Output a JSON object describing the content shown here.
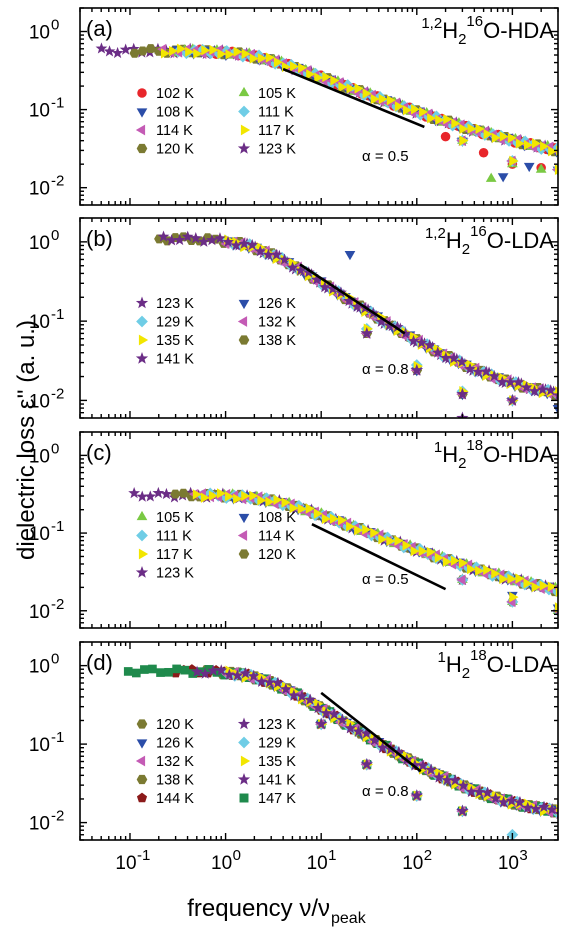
{
  "figure": {
    "ylabel": "dielectric loss ε'' (a. u.)",
    "xlabel_main": "frequency ν/ν",
    "xlabel_sub": "peak",
    "x_tick_labels": [
      {
        "base": "10",
        "exp": "-1"
      },
      {
        "base": "10",
        "exp": "0"
      },
      {
        "base": "10",
        "exp": "1"
      },
      {
        "base": "10",
        "exp": "2"
      },
      {
        "base": "10",
        "exp": "3"
      }
    ],
    "y_tick_labels": [
      {
        "base": "10",
        "exp": "0"
      },
      {
        "base": "10",
        "exp": "-1"
      },
      {
        "base": "10",
        "exp": "-2"
      }
    ]
  },
  "legend_styles": {
    "102 K": {
      "marker": "circle",
      "color": "#e8262b"
    },
    "105 K": {
      "marker": "triangle-up",
      "color": "#7ac943"
    },
    "108 K": {
      "marker": "triangle-down",
      "color": "#2b4da8"
    },
    "111 K": {
      "marker": "diamond",
      "color": "#6fcde6"
    },
    "114 K": {
      "marker": "triangle-left",
      "color": "#c45bb5"
    },
    "117 K": {
      "marker": "triangle-right",
      "color": "#f2e600"
    },
    "120 K": {
      "marker": "hexagon",
      "color": "#7b7a32"
    },
    "123 K": {
      "marker": "star",
      "color": "#6b2d86"
    },
    "126 K": {
      "marker": "triangle-down",
      "color": "#2b4da8"
    },
    "129 K": {
      "marker": "diamond",
      "color": "#6fcde6"
    },
    "132 K": {
      "marker": "triangle-left",
      "color": "#c45bb5"
    },
    "135 K": {
      "marker": "triangle-right",
      "color": "#f2e600"
    },
    "138 K": {
      "marker": "hexagon",
      "color": "#7b7a32"
    },
    "141 K": {
      "marker": "star",
      "color": "#6b2d86"
    },
    "144 K": {
      "marker": "pentagon",
      "color": "#8b1a1a"
    },
    "147 K": {
      "marker": "square",
      "color": "#1f8a4c"
    }
  },
  "chart_data": [
    {
      "type": "scatter",
      "panel_label": "(a)",
      "title": {
        "sup1": "1,2",
        "H": "H",
        "sub": "2",
        "sup2": "16",
        "rest": "O-HDA"
      },
      "xscale": "log",
      "yscale": "log",
      "xlim": [
        0.03,
        3000
      ],
      "ylim": [
        0.006,
        2
      ],
      "annotation": "α = 0.5",
      "slope_line": {
        "x": [
          4,
          120
        ],
        "y": [
          0.33,
          0.06
        ]
      },
      "curve": {
        "plateau": 0.55,
        "knee": 2.0,
        "slope": 0.5,
        "floor": 0.016
      },
      "legend_layout": "two-column, lower-left",
      "legend": [
        [
          "102 K",
          "105 K"
        ],
        [
          "108 K",
          "111 K"
        ],
        [
          "114 K",
          "117 K"
        ],
        [
          "120 K",
          "123 K"
        ]
      ],
      "series": [
        {
          "name": "102 K",
          "x": [
            0.5,
            1,
            2,
            5,
            10,
            20,
            50,
            100,
            200,
            500,
            1000,
            2000
          ],
          "y": [
            0.55,
            0.55,
            0.5,
            0.33,
            0.23,
            0.16,
            0.1,
            0.07,
            0.045,
            0.028,
            0.02,
            0.018
          ]
        },
        {
          "name": "105 K",
          "x": [
            0.3,
            1,
            3,
            10,
            30,
            100,
            300,
            600,
            1000,
            2000
          ],
          "y": [
            0.55,
            0.55,
            0.42,
            0.23,
            0.13,
            0.075,
            0.04,
            0.013,
            0.02,
            0.017
          ]
        },
        {
          "name": "108 K",
          "x": [
            0.3,
            1,
            3,
            10,
            30,
            100,
            300,
            800,
            1500,
            3000
          ],
          "y": [
            0.55,
            0.55,
            0.42,
            0.23,
            0.13,
            0.075,
            0.04,
            0.014,
            0.019,
            0.017
          ]
        },
        {
          "name": "111 K",
          "x": [
            0.3,
            1,
            3,
            10,
            30,
            100,
            300,
            1000,
            3000
          ],
          "y": [
            0.55,
            0.55,
            0.42,
            0.23,
            0.14,
            0.08,
            0.04,
            0.022,
            0.017
          ]
        },
        {
          "name": "114 K",
          "x": [
            0.2,
            1,
            3,
            10,
            30,
            100,
            300,
            1000,
            3000
          ],
          "y": [
            0.55,
            0.55,
            0.42,
            0.23,
            0.13,
            0.075,
            0.04,
            0.022,
            0.017
          ]
        },
        {
          "name": "117 K",
          "x": [
            0.2,
            1,
            3,
            10,
            30,
            100,
            300,
            1000,
            3000
          ],
          "y": [
            0.55,
            0.55,
            0.42,
            0.23,
            0.13,
            0.075,
            0.04,
            0.022,
            0.017
          ]
        },
        {
          "name": "120 K",
          "x": [
            0.1,
            0.2,
            0.5,
            1,
            3,
            10,
            30,
            100,
            300,
            1000
          ],
          "y": [
            0.5,
            0.55,
            0.55,
            0.55,
            0.42,
            0.23,
            0.13,
            0.075,
            0.04,
            0.022
          ]
        },
        {
          "name": "123 K",
          "x": [
            0.05,
            0.1,
            0.2,
            0.5,
            1,
            3,
            10,
            30,
            100,
            300
          ],
          "y": [
            0.45,
            0.5,
            0.55,
            0.55,
            0.55,
            0.42,
            0.23,
            0.13,
            0.075,
            0.04
          ]
        }
      ]
    },
    {
      "type": "scatter",
      "panel_label": "(b)",
      "title": {
        "sup1": "1,2",
        "H": "H",
        "sub": "2",
        "sup2": "16",
        "rest": "O-LDA"
      },
      "xscale": "log",
      "yscale": "log",
      "xlim": [
        0.03,
        3000
      ],
      "ylim": [
        0.006,
        2
      ],
      "annotation": "α = 0.8",
      "slope_line": {
        "x": [
          6,
          75
        ],
        "y": [
          0.52,
          0.07
        ]
      },
      "curve": {
        "plateau": 1.1,
        "knee": 2.0,
        "slope": 0.8,
        "floor": 0.009
      },
      "legend_layout": "two-column, lower-left",
      "legend": [
        [
          "123 K",
          "126 K"
        ],
        [
          "129 K",
          "132 K"
        ],
        [
          "135 K",
          "138 K"
        ],
        [
          "141 K",
          ""
        ]
      ],
      "series": [
        {
          "name": "123 K",
          "x": [
            1,
            3,
            10,
            30,
            100,
            300,
            1000
          ],
          "y": [
            1.1,
            0.75,
            0.24,
            0.07,
            0.024,
            0.006,
            0.01
          ]
        },
        {
          "name": "126 K",
          "x": [
            1,
            3,
            10,
            20,
            100,
            300,
            1000,
            3000
          ],
          "y": [
            1.1,
            0.75,
            0.24,
            0.7,
            0.024,
            0.012,
            0.01,
            0.008
          ]
        },
        {
          "name": "129 K",
          "x": [
            1,
            3,
            10,
            30,
            100,
            300,
            1000,
            3000
          ],
          "y": [
            1.1,
            0.75,
            0.24,
            0.08,
            0.028,
            0.013,
            0.01,
            0.009
          ]
        },
        {
          "name": "132 K",
          "x": [
            1,
            3,
            10,
            30,
            100,
            300,
            1000,
            3000
          ],
          "y": [
            1.1,
            0.75,
            0.24,
            0.07,
            0.024,
            0.012,
            0.01,
            0.009
          ]
        },
        {
          "name": "135 K",
          "x": [
            1,
            3,
            10,
            30,
            100,
            300,
            1000,
            3000
          ],
          "y": [
            1.1,
            0.75,
            0.24,
            0.08,
            0.027,
            0.013,
            0.01,
            0.009
          ]
        },
        {
          "name": "138 K",
          "x": [
            0.2,
            0.5,
            1,
            3,
            10,
            30,
            100,
            300,
            1000
          ],
          "y": [
            1.1,
            1.1,
            1.1,
            0.75,
            0.24,
            0.07,
            0.024,
            0.012,
            0.01
          ]
        },
        {
          "name": "141 K",
          "x": [
            0.2,
            0.5,
            1,
            3,
            10,
            30,
            100,
            300,
            1000
          ],
          "y": [
            1.6,
            1.1,
            1.1,
            0.75,
            0.24,
            0.07,
            0.024,
            0.012,
            0.01
          ]
        }
      ]
    },
    {
      "type": "scatter",
      "panel_label": "(c)",
      "title": {
        "sup1": "1",
        "H": "H",
        "sub": "2",
        "sup2": "18",
        "rest": "O-HDA"
      },
      "xscale": "log",
      "yscale": "log",
      "xlim": [
        0.03,
        3000
      ],
      "ylim": [
        0.006,
        2
      ],
      "annotation": "α = 0.5",
      "slope_line": {
        "x": [
          8,
          200
        ],
        "y": [
          0.13,
          0.019
        ]
      },
      "curve": {
        "plateau": 0.3,
        "knee": 3.0,
        "slope": 0.5,
        "floor": 0.009
      },
      "legend_layout": "two-column, lower-left",
      "legend": [
        [
          "105 K",
          "108 K"
        ],
        [
          "111 K",
          "114 K"
        ],
        [
          "117 K",
          "120 K"
        ],
        [
          "123 K",
          ""
        ]
      ],
      "series": [
        {
          "name": "105 K",
          "x": [
            1,
            3,
            10,
            30,
            100,
            300,
            1000,
            3000
          ],
          "y": [
            0.3,
            0.27,
            0.15,
            0.08,
            0.045,
            0.025,
            0.013,
            0.01
          ]
        },
        {
          "name": "108 K",
          "x": [
            1,
            3,
            10,
            30,
            100,
            300,
            1000,
            3000
          ],
          "y": [
            0.3,
            0.3,
            0.2,
            0.11,
            0.06,
            0.03,
            0.016,
            0.011
          ]
        },
        {
          "name": "111 K",
          "x": [
            0.5,
            1,
            3,
            10,
            30,
            100,
            300,
            1000,
            3000
          ],
          "y": [
            0.3,
            0.3,
            0.27,
            0.15,
            0.08,
            0.045,
            0.025,
            0.013,
            0.01
          ]
        },
        {
          "name": "114 K",
          "x": [
            0.5,
            1,
            3,
            10,
            30,
            100,
            300,
            1000,
            3000
          ],
          "y": [
            0.3,
            0.3,
            0.27,
            0.15,
            0.08,
            0.045,
            0.025,
            0.013,
            0.01
          ]
        },
        {
          "name": "117 K",
          "x": [
            0.5,
            1,
            3,
            10,
            30,
            100,
            300,
            1000,
            3000
          ],
          "y": [
            0.3,
            0.3,
            0.28,
            0.17,
            0.09,
            0.05,
            0.028,
            0.015,
            0.011
          ]
        },
        {
          "name": "120 K",
          "x": [
            0.3,
            0.5,
            1,
            3,
            10,
            30,
            100,
            300,
            1000
          ],
          "y": [
            0.3,
            0.3,
            0.3,
            0.27,
            0.15,
            0.08,
            0.045,
            0.025,
            0.013
          ]
        },
        {
          "name": "123 K",
          "x": [
            0.1,
            0.2,
            0.5,
            1,
            3,
            10,
            30,
            100,
            300
          ],
          "y": [
            0.28,
            0.29,
            0.3,
            0.3,
            0.27,
            0.15,
            0.08,
            0.045,
            0.025
          ]
        }
      ]
    },
    {
      "type": "scatter",
      "panel_label": "(d)",
      "title": {
        "sup1": "1",
        "H": "H",
        "sub": "2",
        "sup2": "18",
        "rest": "O-LDA"
      },
      "xscale": "log",
      "yscale": "log",
      "xlim": [
        0.03,
        3000
      ],
      "ylim": [
        0.006,
        2
      ],
      "annotation": "α = 0.8",
      "slope_line": {
        "x": [
          10,
          110
        ],
        "y": [
          0.45,
          0.045
        ]
      },
      "curve": {
        "plateau": 0.85,
        "knee": 2.5,
        "slope": 0.8,
        "floor": 0.011
      },
      "legend_layout": "two-column, lower-left",
      "legend": [
        [
          "120 K",
          "123 K"
        ],
        [
          "126 K",
          "129 K"
        ],
        [
          "132 K",
          "135 K"
        ],
        [
          "138 K",
          "141 K"
        ],
        [
          "144 K",
          "147 K"
        ]
      ],
      "series": [
        {
          "name": "120 K",
          "x": [
            1,
            3,
            10,
            30,
            100,
            300,
            1000
          ],
          "y": [
            0.85,
            0.6,
            0.18,
            0.055,
            0.022,
            0.014,
            0.012
          ]
        },
        {
          "name": "123 K",
          "x": [
            1,
            3,
            10,
            30,
            100,
            300,
            1000
          ],
          "y": [
            0.85,
            0.6,
            0.18,
            0.055,
            0.022,
            0.014,
            0.012
          ]
        },
        {
          "name": "126 K",
          "x": [
            1,
            3,
            10,
            30,
            100,
            300,
            1000
          ],
          "y": [
            0.85,
            0.6,
            0.18,
            0.055,
            0.022,
            0.014,
            0.012
          ]
        },
        {
          "name": "129 K",
          "x": [
            1,
            3,
            10,
            30,
            100,
            300,
            1000,
            3000
          ],
          "y": [
            0.85,
            0.6,
            0.18,
            0.055,
            0.022,
            0.014,
            0.007,
            0.01
          ]
        },
        {
          "name": "132 K",
          "x": [
            1,
            3,
            10,
            30,
            100,
            300,
            1000
          ],
          "y": [
            0.85,
            0.6,
            0.18,
            0.055,
            0.022,
            0.014,
            0.012
          ]
        },
        {
          "name": "135 K",
          "x": [
            1,
            3,
            10,
            30,
            100,
            300,
            1000
          ],
          "y": [
            0.85,
            0.6,
            0.18,
            0.055,
            0.022,
            0.014,
            0.012
          ]
        },
        {
          "name": "138 K",
          "x": [
            0.5,
            1,
            3,
            10,
            30,
            100,
            300,
            1000,
            2000
          ],
          "y": [
            0.85,
            0.85,
            0.6,
            0.18,
            0.055,
            0.022,
            0.014,
            0.012,
            0.013
          ]
        },
        {
          "name": "141 K",
          "x": [
            0.5,
            1,
            3,
            10,
            30,
            100,
            300,
            1000
          ],
          "y": [
            0.85,
            0.85,
            0.6,
            0.18,
            0.055,
            0.022,
            0.014,
            0.012
          ]
        },
        {
          "name": "144 K",
          "x": [
            0.3,
            0.5,
            1,
            3,
            10,
            30,
            100,
            300
          ],
          "y": [
            0.8,
            0.85,
            0.85,
            0.6,
            0.18,
            0.055,
            0.022,
            0.014
          ]
        },
        {
          "name": "147 K",
          "x": [
            0.1,
            0.2,
            0.5,
            1,
            3,
            10,
            30,
            100,
            300
          ],
          "y": [
            0.7,
            0.75,
            0.8,
            0.8,
            0.6,
            0.18,
            0.055,
            0.022,
            0.014
          ]
        }
      ]
    }
  ]
}
